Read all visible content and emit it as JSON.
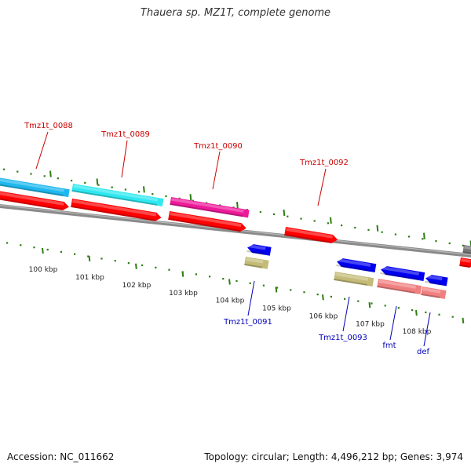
{
  "title": "Thauera sp. MZ1T, complete genome",
  "footer": {
    "accession": "Accession: NC_011662",
    "summary": "Topology: circular; Length: 4,496,212 bp; Genes: 3,974"
  },
  "colors": {
    "forward_label": "#cc0000",
    "reverse_label": "#0000bb",
    "tick": "#2e7d12",
    "backbone": "#8a8a8a",
    "red_cds": "#ff0000",
    "blue_cds": "#0000ee",
    "cyan_cds": "#2fe8f0",
    "sky_cds": "#1eb8ee",
    "magenta_cds": "#ee1a9a",
    "khaki_cds": "#c4bb78",
    "salmon_cds": "#f08080",
    "gray_cds": "#777777"
  },
  "scale": {
    "tick_labels": [
      "100 kbp",
      "101 kbp",
      "102 kbp",
      "103 kbp",
      "104 kbp",
      "105 kbp",
      "106 kbp",
      "107 kbp",
      "108 kbp"
    ]
  },
  "genes": {
    "forward": [
      "Tmz1t_0088",
      "Tmz1t_0089",
      "Tmz1t_0090",
      "Tmz1t_0092"
    ],
    "reverse": [
      "Tmz1t_0091",
      "Tmz1t_0093",
      "fmt",
      "def"
    ]
  }
}
